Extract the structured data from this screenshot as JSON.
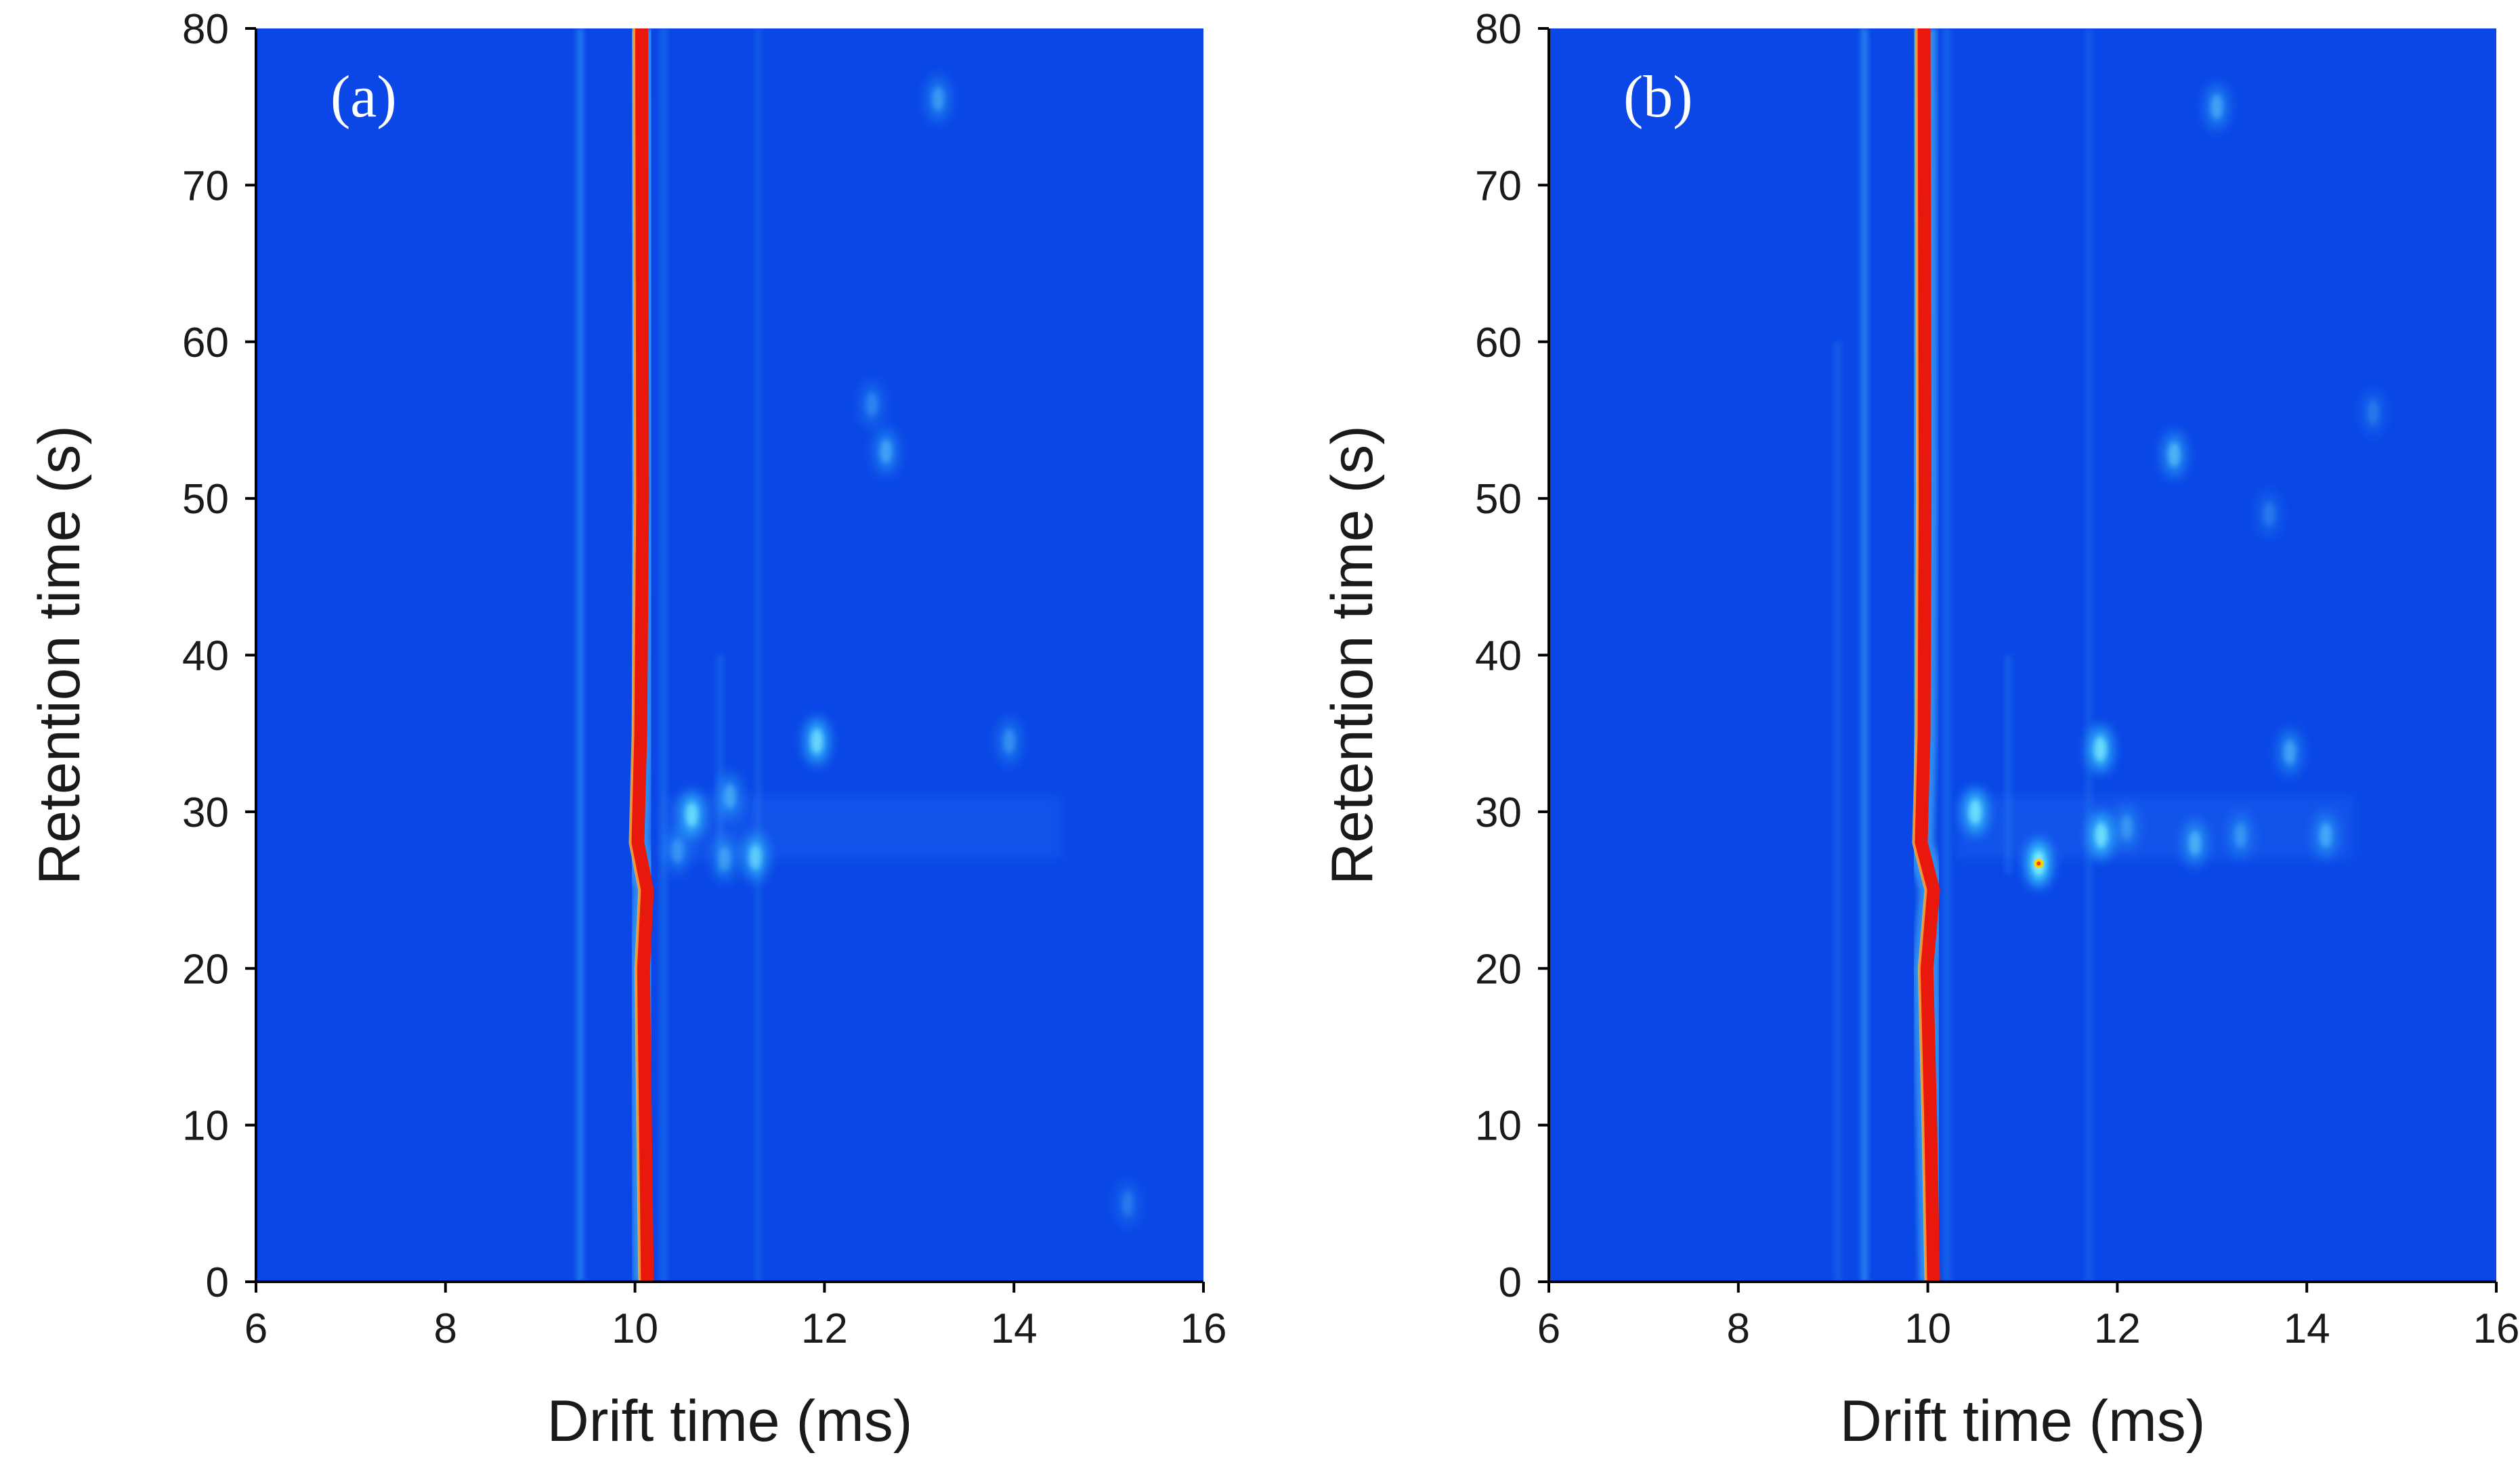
{
  "chart_data": [
    {
      "type": "heatmap",
      "panel_label": "(a)",
      "title": "",
      "xlabel": "Drift time (ms)",
      "ylabel": "Retention time (s)",
      "xlim": [
        6,
        16
      ],
      "ylim": [
        0,
        80
      ],
      "xticks": [
        6,
        8,
        10,
        12,
        14,
        16
      ],
      "yticks": [
        0,
        10,
        20,
        30,
        40,
        50,
        60,
        70,
        80
      ],
      "background_color": "#0a47e6",
      "reactant_ion_peak": {
        "color": "#e8180c",
        "path": [
          [
            10.12,
            0
          ],
          [
            10.1,
            10
          ],
          [
            10.08,
            20
          ],
          [
            10.12,
            25
          ],
          [
            10.02,
            28
          ],
          [
            10.05,
            35
          ],
          [
            10.07,
            50
          ],
          [
            10.06,
            80
          ]
        ]
      },
      "streaks": [
        {
          "x": 9.42,
          "y0": 0,
          "y1": 80,
          "intensity": 0.35
        },
        {
          "x": 10.3,
          "y0": 0,
          "y1": 80,
          "intensity": 0.2
        },
        {
          "x": 10.9,
          "y0": 26,
          "y1": 40,
          "intensity": 0.15
        },
        {
          "x": 11.3,
          "y0": 0,
          "y1": 80,
          "intensity": 0.12
        }
      ],
      "spots": [
        {
          "drift_ms": 10.6,
          "retention_s": 29.8,
          "intensity": 0.75
        },
        {
          "drift_ms": 11.27,
          "retention_s": 27.1,
          "intensity": 0.65
        },
        {
          "drift_ms": 11.92,
          "retention_s": 34.5,
          "intensity": 0.75
        },
        {
          "drift_ms": 11.0,
          "retention_s": 31.0,
          "intensity": 0.4
        },
        {
          "drift_ms": 10.95,
          "retention_s": 27.0,
          "intensity": 0.35
        },
        {
          "drift_ms": 10.45,
          "retention_s": 27.5,
          "intensity": 0.3
        },
        {
          "drift_ms": 12.65,
          "retention_s": 53.0,
          "intensity": 0.4
        },
        {
          "drift_ms": 12.5,
          "retention_s": 56.0,
          "intensity": 0.25
        },
        {
          "drift_ms": 13.2,
          "retention_s": 75.5,
          "intensity": 0.35
        },
        {
          "drift_ms": 13.95,
          "retention_s": 34.5,
          "intensity": 0.3
        },
        {
          "drift_ms": 15.2,
          "retention_s": 5.0,
          "intensity": 0.2
        }
      ]
    },
    {
      "type": "heatmap",
      "panel_label": "(b)",
      "title": "",
      "xlabel": "Drift time (ms)",
      "ylabel": "Retention time (s)",
      "xlim": [
        6,
        16
      ],
      "ylim": [
        0,
        80
      ],
      "xticks": [
        6,
        8,
        10,
        12,
        14,
        16
      ],
      "yticks": [
        0,
        10,
        20,
        30,
        40,
        50,
        60,
        70,
        80
      ],
      "background_color": "#0a47e6",
      "reactant_ion_peak": {
        "color": "#e8180c",
        "path": [
          [
            10.05,
            0
          ],
          [
            10.02,
            10
          ],
          [
            9.98,
            20
          ],
          [
            10.05,
            25
          ],
          [
            9.92,
            28
          ],
          [
            9.95,
            35
          ],
          [
            9.96,
            50
          ],
          [
            9.95,
            80
          ]
        ]
      },
      "streaks": [
        {
          "x": 9.33,
          "y0": 0,
          "y1": 80,
          "intensity": 0.4
        },
        {
          "x": 9.05,
          "y0": 0,
          "y1": 60,
          "intensity": 0.15
        },
        {
          "x": 10.2,
          "y0": 0,
          "y1": 80,
          "intensity": 0.2
        },
        {
          "x": 10.85,
          "y0": 26,
          "y1": 40,
          "intensity": 0.15
        },
        {
          "x": 11.7,
          "y0": 0,
          "y1": 80,
          "intensity": 0.12
        }
      ],
      "spots": [
        {
          "drift_ms": 10.5,
          "retention_s": 30.0,
          "intensity": 0.8
        },
        {
          "drift_ms": 11.17,
          "retention_s": 26.7,
          "intensity": 1.0
        },
        {
          "drift_ms": 11.82,
          "retention_s": 34.0,
          "intensity": 0.8
        },
        {
          "drift_ms": 11.83,
          "retention_s": 28.5,
          "intensity": 0.8
        },
        {
          "drift_ms": 12.6,
          "retention_s": 52.8,
          "intensity": 0.5
        },
        {
          "drift_ms": 13.05,
          "retention_s": 75.0,
          "intensity": 0.4
        },
        {
          "drift_ms": 12.82,
          "retention_s": 28.0,
          "intensity": 0.45
        },
        {
          "drift_ms": 13.82,
          "retention_s": 33.8,
          "intensity": 0.4
        },
        {
          "drift_ms": 14.2,
          "retention_s": 28.5,
          "intensity": 0.4
        },
        {
          "drift_ms": 13.3,
          "retention_s": 28.5,
          "intensity": 0.3
        },
        {
          "drift_ms": 13.6,
          "retention_s": 49.0,
          "intensity": 0.2
        },
        {
          "drift_ms": 14.7,
          "retention_s": 55.5,
          "intensity": 0.2
        },
        {
          "drift_ms": 12.1,
          "retention_s": 29.0,
          "intensity": 0.3
        }
      ]
    }
  ]
}
